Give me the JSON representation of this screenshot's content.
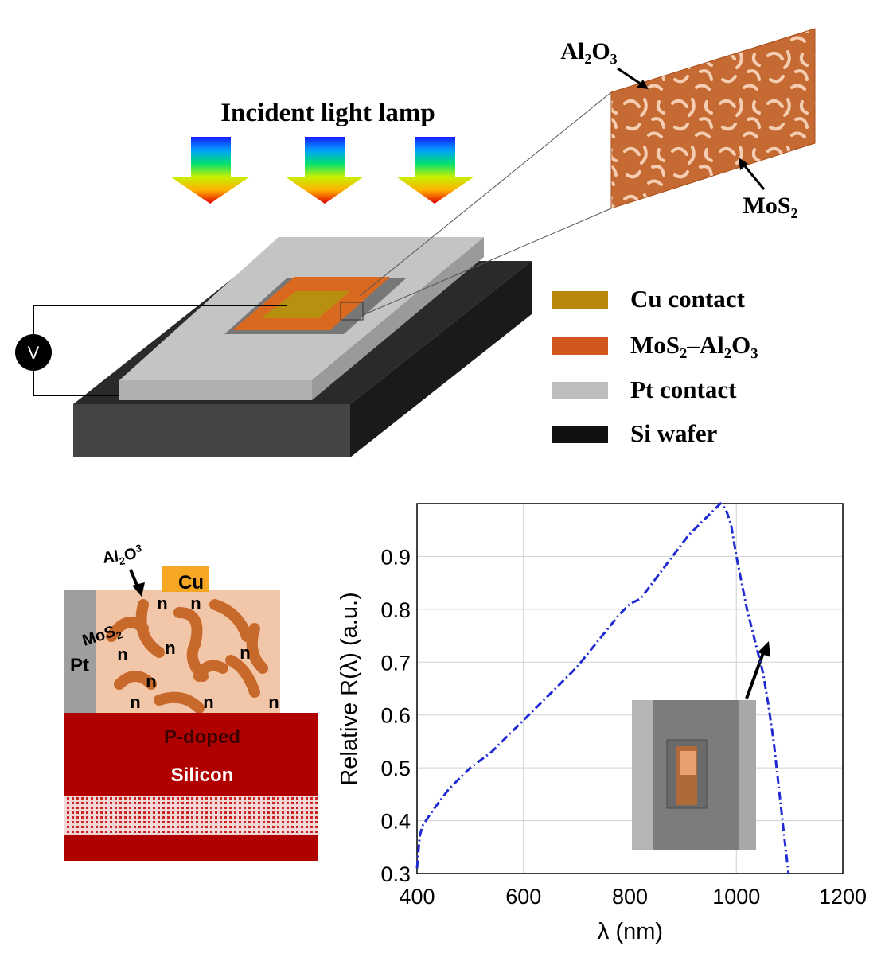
{
  "schematic": {
    "title": "Incident light lamp",
    "voltmeter_label": "V",
    "inset_label_top": "Al₂O₃",
    "inset_label_bottom": "MoS₂",
    "legend": [
      {
        "label": "Cu contact",
        "color": "#b8860b"
      },
      {
        "label": "MoS₂–Al₂O₃",
        "color": "#d2571e"
      },
      {
        "label": "Pt contact",
        "color": "#bdbdbd"
      },
      {
        "label": "Si wafer",
        "color": "#111111"
      }
    ]
  },
  "cross_section": {
    "al2o3_label": "Al",
    "al2o3_sub1": "2",
    "al2o3_mid": "O",
    "al2o3_sub2": "3",
    "cu_label": "Cu",
    "mos2_label": "MoS",
    "mos2_sub": "2",
    "pt_label": "Pt",
    "n_label": "n",
    "silicon_line1": "P-doped",
    "silicon_line2": "Silicon",
    "colors": {
      "pt": "#9e9e9e",
      "mos2_bg": "#f2c6a8",
      "mos2_flake": "#c8692c",
      "cu": "#f5a623",
      "silicon": "#b00000"
    }
  },
  "chart_data": {
    "type": "line",
    "xlabel": "λ (nm)",
    "ylabel": "Relative R(λ) (a.u.)",
    "xlim": [
      400,
      1200
    ],
    "ylim": [
      0.3,
      1.0
    ],
    "xticks": [
      400,
      600,
      800,
      1000,
      1200
    ],
    "yticks": [
      0.3,
      0.4,
      0.5,
      0.6,
      0.7,
      0.8,
      0.9
    ],
    "grid": true,
    "line_color": "#1f2bd1",
    "line_style": "dash-dot",
    "x": [
      400,
      405,
      410,
      430,
      460,
      500,
      540,
      580,
      620,
      660,
      700,
      740,
      780,
      800,
      820,
      850,
      880,
      910,
      940,
      960,
      970,
      980,
      990,
      1000,
      1010,
      1020,
      1030,
      1040,
      1050,
      1060,
      1070,
      1080,
      1090,
      1098
    ],
    "y": [
      0.31,
      0.37,
      0.39,
      0.42,
      0.46,
      0.5,
      0.53,
      0.57,
      0.61,
      0.65,
      0.69,
      0.74,
      0.79,
      0.81,
      0.82,
      0.86,
      0.9,
      0.94,
      0.97,
      0.99,
      1.0,
      0.99,
      0.96,
      0.9,
      0.85,
      0.8,
      0.76,
      0.72,
      0.68,
      0.62,
      0.55,
      0.46,
      0.37,
      0.3
    ]
  }
}
